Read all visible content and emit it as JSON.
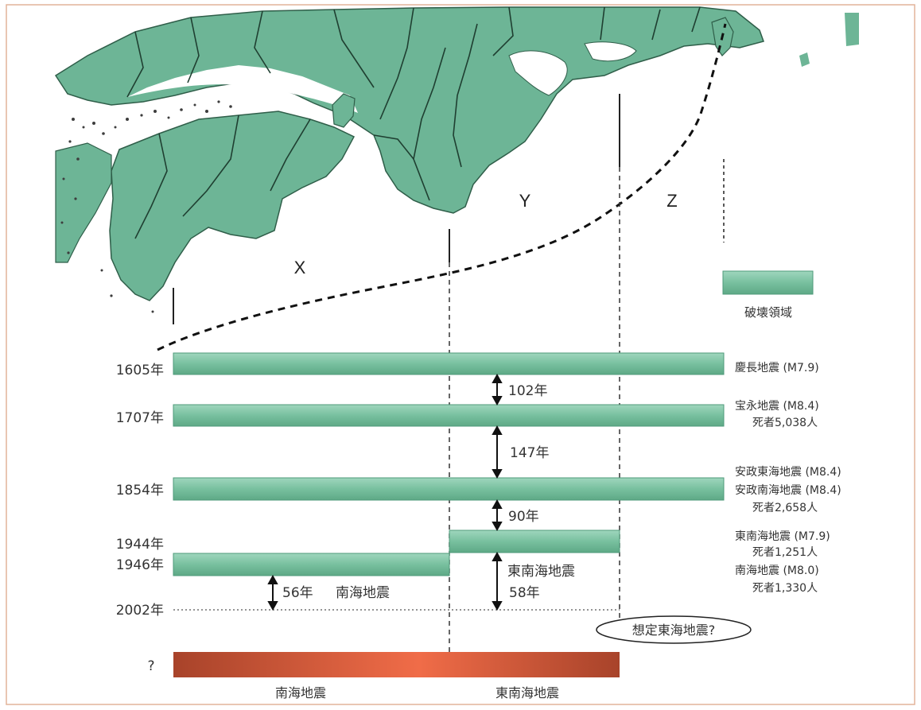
{
  "zones": {
    "x": "X",
    "y": "Y",
    "z": "Z"
  },
  "legend": {
    "label": "破壊領域"
  },
  "years": [
    "1605年",
    "1707年",
    "1854年",
    "1944年",
    "1946年",
    "2002年"
  ],
  "intervals": {
    "i1": "102年",
    "i2": "147年",
    "i3": "90年",
    "nankai_gap": "56年",
    "nankai_label": "南海地震",
    "tonankai_label": "東南海地震",
    "tonankai_gap": "58年"
  },
  "events": {
    "keicho": "慶長地震 (M7.9)",
    "hoei": "宝永地震 (M8.4)",
    "hoei_deaths": "死者5,038人",
    "ansei_tokai": "安政東海地震 (M8.4)",
    "ansei_nankai": "安政南海地震 (M8.4)",
    "ansei_deaths": "死者2,658人",
    "tonankai": "東南海地震 (M7.9)",
    "tonankai_deaths": "死者1,251人",
    "nankai": "南海地震 (M8.0)",
    "nankai_deaths": "死者1,330人"
  },
  "future": {
    "question": "?",
    "tokai_callout": "想定東海地震?",
    "bottom_left": "南海地震",
    "bottom_right": "東南海地震"
  },
  "colors": {
    "land": "#6db596",
    "bar": "#7cc2a2",
    "bar_edge": "#4e9a7a",
    "future_dark": "#b0452a",
    "future_light": "#f06a45"
  }
}
